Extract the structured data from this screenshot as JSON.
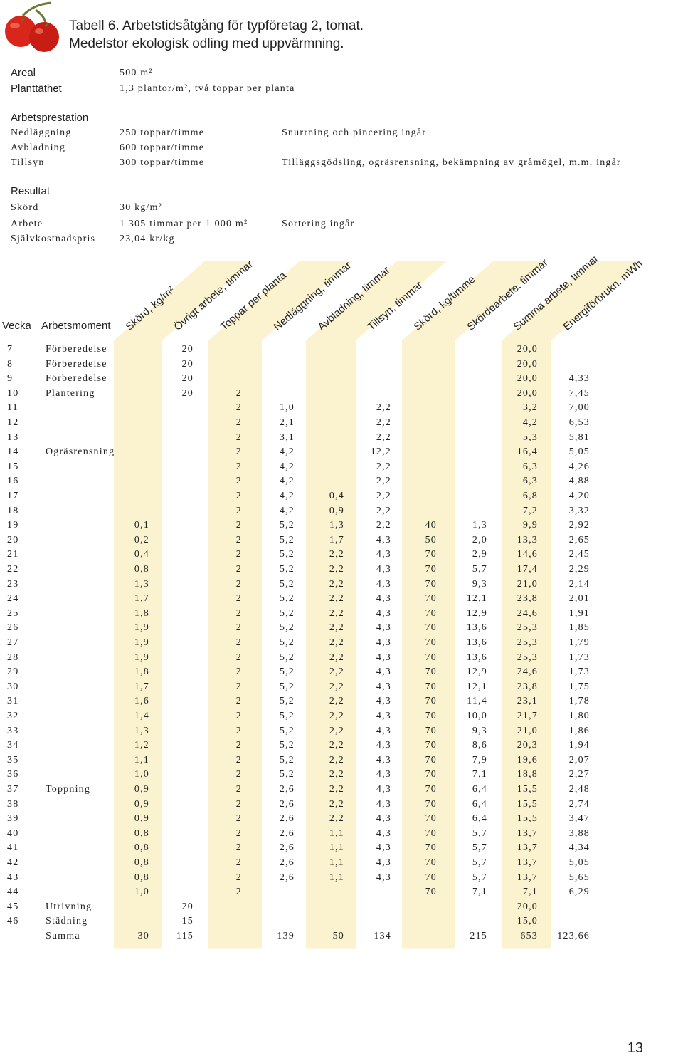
{
  "title": [
    "Tabell 6. Arbetstidsåtgång för typföretag 2, tomat.",
    "Medelstor ekologisk odling med uppvärmning."
  ],
  "info": {
    "top": [
      {
        "label": "Areal",
        "value": "500 m²"
      },
      {
        "label": "Planttäthet",
        "value": "1,3 plantor/m², två toppar per planta"
      }
    ],
    "arbetsprestation": {
      "heading": "Arbetsprestation",
      "items": [
        {
          "label": "Nedläggning",
          "value": "250 toppar/timme",
          "note": "Snurrning och pincering ingår"
        },
        {
          "label": "Avbladning",
          "value": "600 toppar/timme"
        },
        {
          "label": "Tillsyn",
          "value": "300 toppar/timme",
          "note": "Tilläggsgödsling, ogräsrensning, bekämpning av gråmögel, m.m. ingår"
        }
      ]
    },
    "resultat": {
      "heading": "Resultat",
      "items": [
        {
          "label": "Skörd",
          "value": "30 kg/m²"
        },
        {
          "label": "Arbete",
          "value": "1 305 timmar per 1 000 m²",
          "note": "Sortering ingår"
        },
        {
          "label": "Självkostnadspris",
          "value": "23,04 kr/kg"
        }
      ]
    }
  },
  "table": {
    "columns": [
      "Vecka",
      "Arbetsmoment",
      "Skörd, kg/m²",
      "Övrigt arbete, timmar",
      "Toppar per planta",
      "Nedläggning, timmar",
      "Avbladning, timmar",
      "Tillsyn, timmar",
      "Skörd, kg/timme",
      "Skördearbete, timmar",
      "Summa arbete, timmar",
      "Energiförbrukn. mWh"
    ],
    "rows": [
      [
        "7",
        "Förberedelse",
        null,
        "20",
        null,
        null,
        null,
        null,
        null,
        null,
        "20,0",
        null
      ],
      [
        "8",
        "Förberedelse",
        null,
        "20",
        null,
        null,
        null,
        null,
        null,
        null,
        "20,0",
        null
      ],
      [
        "9",
        "Förberedelse",
        null,
        "20",
        null,
        null,
        null,
        null,
        null,
        null,
        "20,0",
        "4,33"
      ],
      [
        "10",
        "Plantering",
        null,
        "20",
        "2",
        null,
        null,
        null,
        null,
        null,
        "20,0",
        "7,45"
      ],
      [
        "11",
        null,
        null,
        null,
        "2",
        "1,0",
        null,
        "2,2",
        null,
        null,
        "3,2",
        "7,00"
      ],
      [
        "12",
        null,
        null,
        null,
        "2",
        "2,1",
        null,
        "2,2",
        null,
        null,
        "4,2",
        "6,53"
      ],
      [
        "13",
        null,
        null,
        null,
        "2",
        "3,1",
        null,
        "2,2",
        null,
        null,
        "5,3",
        "5,81"
      ],
      [
        "14",
        "Ogräsrensning",
        null,
        null,
        "2",
        "4,2",
        null,
        "12,2",
        null,
        null,
        "16,4",
        "5,05"
      ],
      [
        "15",
        null,
        null,
        null,
        "2",
        "4,2",
        null,
        "2,2",
        null,
        null,
        "6,3",
        "4,26"
      ],
      [
        "16",
        null,
        null,
        null,
        "2",
        "4,2",
        null,
        "2,2",
        null,
        null,
        "6,3",
        "4,88"
      ],
      [
        "17",
        null,
        null,
        null,
        "2",
        "4,2",
        "0,4",
        "2,2",
        null,
        null,
        "6,8",
        "4,20"
      ],
      [
        "18",
        null,
        null,
        null,
        "2",
        "4,2",
        "0,9",
        "2,2",
        null,
        null,
        "7,2",
        "3,32"
      ],
      [
        "19",
        null,
        "0,1",
        null,
        "2",
        "5,2",
        "1,3",
        "2,2",
        "40",
        "1,3",
        "9,9",
        "2,92"
      ],
      [
        "20",
        null,
        "0,2",
        null,
        "2",
        "5,2",
        "1,7",
        "4,3",
        "50",
        "2,0",
        "13,3",
        "2,65"
      ],
      [
        "21",
        null,
        "0,4",
        null,
        "2",
        "5,2",
        "2,2",
        "4,3",
        "70",
        "2,9",
        "14,6",
        "2,45"
      ],
      [
        "22",
        null,
        "0,8",
        null,
        "2",
        "5,2",
        "2,2",
        "4,3",
        "70",
        "5,7",
        "17,4",
        "2,29"
      ],
      [
        "23",
        null,
        "1,3",
        null,
        "2",
        "5,2",
        "2,2",
        "4,3",
        "70",
        "9,3",
        "21,0",
        "2,14"
      ],
      [
        "24",
        null,
        "1,7",
        null,
        "2",
        "5,2",
        "2,2",
        "4,3",
        "70",
        "12,1",
        "23,8",
        "2,01"
      ],
      [
        "25",
        null,
        "1,8",
        null,
        "2",
        "5,2",
        "2,2",
        "4,3",
        "70",
        "12,9",
        "24,6",
        "1,91"
      ],
      [
        "26",
        null,
        "1,9",
        null,
        "2",
        "5,2",
        "2,2",
        "4,3",
        "70",
        "13,6",
        "25,3",
        "1,85"
      ],
      [
        "27",
        null,
        "1,9",
        null,
        "2",
        "5,2",
        "2,2",
        "4,3",
        "70",
        "13,6",
        "25,3",
        "1,79"
      ],
      [
        "28",
        null,
        "1,9",
        null,
        "2",
        "5,2",
        "2,2",
        "4,3",
        "70",
        "13,6",
        "25,3",
        "1,73"
      ],
      [
        "29",
        null,
        "1,8",
        null,
        "2",
        "5,2",
        "2,2",
        "4,3",
        "70",
        "12,9",
        "24,6",
        "1,73"
      ],
      [
        "30",
        null,
        "1,7",
        null,
        "2",
        "5,2",
        "2,2",
        "4,3",
        "70",
        "12,1",
        "23,8",
        "1,75"
      ],
      [
        "31",
        null,
        "1,6",
        null,
        "2",
        "5,2",
        "2,2",
        "4,3",
        "70",
        "11,4",
        "23,1",
        "1,78"
      ],
      [
        "32",
        null,
        "1,4",
        null,
        "2",
        "5,2",
        "2,2",
        "4,3",
        "70",
        "10,0",
        "21,7",
        "1,80"
      ],
      [
        "33",
        null,
        "1,3",
        null,
        "2",
        "5,2",
        "2,2",
        "4,3",
        "70",
        "9,3",
        "21,0",
        "1,86"
      ],
      [
        "34",
        null,
        "1,2",
        null,
        "2",
        "5,2",
        "2,2",
        "4,3",
        "70",
        "8,6",
        "20,3",
        "1,94"
      ],
      [
        "35",
        null,
        "1,1",
        null,
        "2",
        "5,2",
        "2,2",
        "4,3",
        "70",
        "7,9",
        "19,6",
        "2,07"
      ],
      [
        "36",
        null,
        "1,0",
        null,
        "2",
        "5,2",
        "2,2",
        "4,3",
        "70",
        "7,1",
        "18,8",
        "2,27"
      ],
      [
        "37",
        "Toppning",
        "0,9",
        null,
        "2",
        "2,6",
        "2,2",
        "4,3",
        "70",
        "6,4",
        "15,5",
        "2,48"
      ],
      [
        "38",
        null,
        "0,9",
        null,
        "2",
        "2,6",
        "2,2",
        "4,3",
        "70",
        "6,4",
        "15,5",
        "2,74"
      ],
      [
        "39",
        null,
        "0,9",
        null,
        "2",
        "2,6",
        "2,2",
        "4,3",
        "70",
        "6,4",
        "15,5",
        "3,47"
      ],
      [
        "40",
        null,
        "0,8",
        null,
        "2",
        "2,6",
        "1,1",
        "4,3",
        "70",
        "5,7",
        "13,7",
        "3,88"
      ],
      [
        "41",
        null,
        "0,8",
        null,
        "2",
        "2,6",
        "1,1",
        "4,3",
        "70",
        "5,7",
        "13,7",
        "4,34"
      ],
      [
        "42",
        null,
        "0,8",
        null,
        "2",
        "2,6",
        "1,1",
        "4,3",
        "70",
        "5,7",
        "13,7",
        "5,05"
      ],
      [
        "43",
        null,
        "0,8",
        null,
        "2",
        "2,6",
        "1,1",
        "4,3",
        "70",
        "5,7",
        "13,7",
        "5,65"
      ],
      [
        "44",
        null,
        "1,0",
        null,
        "2",
        null,
        null,
        null,
        "70",
        "7,1",
        "7,1",
        "6,29"
      ],
      [
        "45",
        "Utrivning",
        null,
        "20",
        null,
        null,
        null,
        null,
        null,
        null,
        "20,0",
        null
      ],
      [
        "46",
        "Städning",
        null,
        "15",
        null,
        null,
        null,
        null,
        null,
        null,
        "15,0",
        null
      ],
      [
        null,
        "Summa",
        "30",
        "115",
        null,
        "139",
        "50",
        "134",
        null,
        "215",
        "653",
        "123,66"
      ]
    ]
  },
  "page_number": "13"
}
